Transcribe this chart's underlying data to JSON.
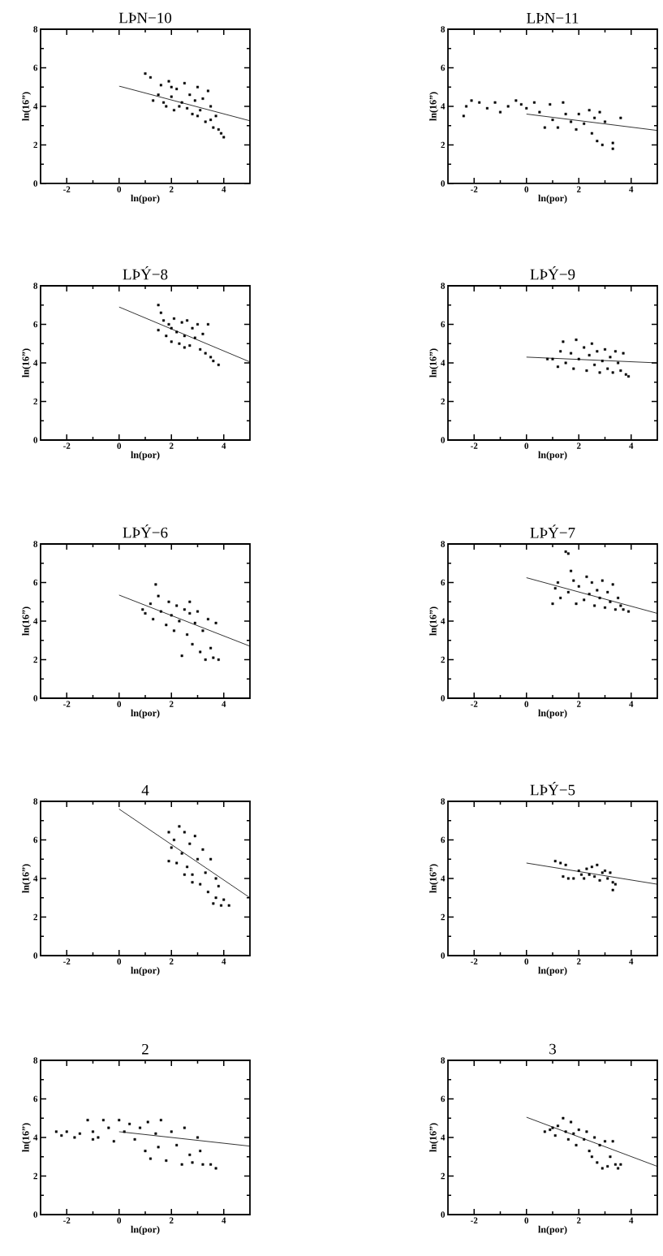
{
  "chart_data": [
    {
      "type": "scatter",
      "title": "LÞN−10",
      "xlabel": "ln(por)",
      "ylabel": "ln(16”)",
      "xlim": [
        -3,
        5
      ],
      "ylim": [
        0,
        8
      ],
      "xticks": [
        -2,
        0,
        2,
        4
      ],
      "yticks": [
        0,
        2,
        4,
        6,
        8
      ],
      "series": [
        {
          "marker": "square",
          "color": "#000000",
          "x": [
            1.0,
            1.2,
            1.3,
            1.5,
            1.6,
            1.8,
            1.9,
            2.0,
            2.1,
            2.2,
            2.4,
            2.5,
            2.6,
            2.7,
            2.8,
            2.9,
            3.0,
            3.1,
            3.2,
            3.3,
            3.4,
            3.5,
            3.5,
            3.6,
            3.7,
            3.8,
            3.9,
            4.0,
            1.7,
            2.3,
            3.0,
            2.0
          ],
          "values": [
            5.7,
            5.5,
            4.3,
            4.6,
            5.1,
            4.0,
            5.3,
            4.5,
            3.8,
            4.9,
            4.2,
            5.2,
            3.9,
            4.6,
            3.6,
            4.3,
            5.0,
            3.8,
            4.4,
            3.2,
            4.8,
            4.0,
            3.3,
            2.9,
            3.5,
            2.8,
            2.6,
            2.4,
            4.2,
            4.0,
            3.5,
            5.0
          ]
        },
        {
          "type": "line",
          "marker": "none",
          "color": "#000000",
          "x": [
            0,
            5
          ],
          "values": [
            5.05,
            3.25
          ]
        }
      ]
    },
    {
      "type": "scatter",
      "title": "LÞN−11",
      "xlabel": "ln(por)",
      "ylabel": "ln(16”)",
      "xlim": [
        -3,
        5
      ],
      "ylim": [
        0,
        8
      ],
      "xticks": [
        -2,
        0,
        2,
        4
      ],
      "yticks": [
        0,
        2,
        4,
        6,
        8
      ],
      "series": [
        {
          "marker": "square",
          "color": "#000000",
          "x": [
            -2.4,
            -2.3,
            -2.1,
            -1.8,
            -1.5,
            -1.2,
            -1.0,
            -0.7,
            -0.4,
            -0.2,
            0,
            0.3,
            0.5,
            0.7,
            0.9,
            1.0,
            1.2,
            1.4,
            1.5,
            1.7,
            1.9,
            2.0,
            2.2,
            2.4,
            2.5,
            2.6,
            2.7,
            2.8,
            2.9,
            3.0,
            3.3,
            3.6,
            3.3
          ],
          "values": [
            3.5,
            4.0,
            4.3,
            4.2,
            3.9,
            4.2,
            3.7,
            4.0,
            4.3,
            4.1,
            3.9,
            4.2,
            3.7,
            2.9,
            4.1,
            3.3,
            2.9,
            4.2,
            3.6,
            3.2,
            2.8,
            3.6,
            3.1,
            3.8,
            2.6,
            3.4,
            2.2,
            3.7,
            2.0,
            3.2,
            1.8,
            3.4,
            2.1
          ]
        },
        {
          "type": "line",
          "marker": "none",
          "color": "#000000",
          "x": [
            0,
            5
          ],
          "values": [
            3.6,
            2.75
          ]
        }
      ]
    },
    {
      "type": "scatter",
      "title": "LÞÝ−8",
      "xlabel": "ln(por)",
      "ylabel": "ln(16”)",
      "xlim": [
        -3,
        5
      ],
      "ylim": [
        0,
        8
      ],
      "xticks": [
        -2,
        0,
        2,
        4
      ],
      "yticks": [
        0,
        2,
        4,
        6,
        8
      ],
      "series": [
        {
          "marker": "square",
          "color": "#000000",
          "x": [
            1.5,
            1.6,
            1.5,
            1.7,
            1.8,
            1.9,
            2.0,
            2.1,
            2.2,
            2.3,
            2.4,
            2.5,
            2.6,
            2.7,
            2.8,
            2.9,
            3.0,
            3.1,
            3.2,
            3.3,
            3.4,
            3.5,
            3.6,
            3.8,
            2.0,
            2.5
          ],
          "values": [
            7.0,
            6.6,
            5.7,
            6.2,
            5.4,
            6.0,
            5.1,
            6.3,
            5.6,
            5.0,
            6.1,
            5.4,
            6.2,
            4.9,
            5.8,
            5.3,
            6.0,
            4.7,
            5.5,
            4.5,
            6.0,
            4.3,
            4.1,
            3.9,
            5.8,
            4.8
          ]
        },
        {
          "type": "line",
          "marker": "none",
          "color": "#000000",
          "x": [
            0,
            5
          ],
          "values": [
            6.9,
            4.05
          ]
        }
      ]
    },
    {
      "type": "scatter",
      "title": "LÞÝ−9",
      "xlabel": "ln(por)",
      "ylabel": "ln(16”)",
      "xlim": [
        -3,
        5
      ],
      "ylim": [
        0,
        8
      ],
      "xticks": [
        -2,
        0,
        2,
        4
      ],
      "yticks": [
        0,
        2,
        4,
        6,
        8
      ],
      "series": [
        {
          "marker": "square",
          "color": "#000000",
          "x": [
            1.0,
            1.2,
            1.3,
            1.4,
            1.5,
            1.7,
            1.8,
            1.9,
            2.0,
            2.2,
            2.3,
            2.4,
            2.5,
            2.6,
            2.7,
            2.8,
            2.9,
            3.0,
            3.1,
            3.2,
            3.3,
            3.4,
            3.5,
            3.6,
            3.7,
            3.8,
            3.9,
            0.8
          ],
          "values": [
            4.2,
            3.8,
            4.6,
            5.1,
            4.0,
            4.5,
            3.7,
            5.2,
            4.2,
            4.8,
            3.6,
            4.4,
            5.0,
            3.9,
            4.6,
            3.5,
            4.1,
            4.7,
            3.7,
            4.3,
            3.5,
            4.6,
            4.0,
            3.6,
            4.5,
            3.4,
            3.3,
            4.2
          ]
        },
        {
          "type": "line",
          "marker": "none",
          "color": "#000000",
          "x": [
            0,
            5
          ],
          "values": [
            4.3,
            4.0
          ]
        }
      ]
    },
    {
      "type": "scatter",
      "title": "LÞÝ−6",
      "xlabel": "ln(por)",
      "ylabel": "ln(16”)",
      "xlim": [
        -3,
        5
      ],
      "ylim": [
        0,
        8
      ],
      "xticks": [
        -2,
        0,
        2,
        4
      ],
      "yticks": [
        0,
        2,
        4,
        6,
        8
      ],
      "series": [
        {
          "marker": "square",
          "color": "#000000",
          "x": [
            0.9,
            1.0,
            1.2,
            1.3,
            1.4,
            1.5,
            1.6,
            1.8,
            1.9,
            2.0,
            2.1,
            2.2,
            2.3,
            2.4,
            2.5,
            2.6,
            2.7,
            2.8,
            2.9,
            3.0,
            3.1,
            3.2,
            3.3,
            3.4,
            3.5,
            3.6,
            3.7,
            3.8,
            2.7
          ],
          "values": [
            4.6,
            4.4,
            4.9,
            4.1,
            5.9,
            5.3,
            4.5,
            3.8,
            5.0,
            4.3,
            3.5,
            4.8,
            4.0,
            2.2,
            4.6,
            3.3,
            4.4,
            2.8,
            3.9,
            4.5,
            2.4,
            3.5,
            2.0,
            4.1,
            2.6,
            2.1,
            3.9,
            2.0,
            5.0
          ]
        },
        {
          "type": "line",
          "marker": "none",
          "color": "#000000",
          "x": [
            0,
            5
          ],
          "values": [
            5.35,
            2.7
          ]
        }
      ]
    },
    {
      "type": "scatter",
      "title": "LÞÝ−7",
      "xlabel": "ln(por)",
      "ylabel": "ln(16”)",
      "xlim": [
        -3,
        5
      ],
      "ylim": [
        0,
        8
      ],
      "xticks": [
        -2,
        0,
        2,
        4
      ],
      "yticks": [
        0,
        2,
        4,
        6,
        8
      ],
      "series": [
        {
          "marker": "square",
          "color": "#000000",
          "x": [
            1.0,
            1.1,
            1.3,
            1.5,
            1.6,
            1.7,
            1.8,
            1.6,
            1.9,
            2.0,
            2.2,
            2.3,
            2.4,
            2.5,
            2.6,
            2.7,
            2.8,
            2.9,
            3.0,
            3.1,
            3.2,
            3.3,
            3.4,
            3.5,
            3.6,
            3.7,
            3.9,
            1.2
          ],
          "values": [
            4.9,
            5.7,
            5.2,
            7.6,
            7.5,
            6.6,
            6.1,
            5.5,
            4.9,
            5.8,
            5.1,
            6.3,
            5.4,
            6.0,
            4.8,
            5.6,
            5.2,
            6.1,
            4.7,
            5.5,
            5.0,
            5.9,
            4.6,
            5.2,
            4.8,
            4.6,
            4.5,
            6.0
          ]
        },
        {
          "type": "line",
          "marker": "none",
          "color": "#000000",
          "x": [
            0,
            5
          ],
          "values": [
            6.25,
            4.4
          ]
        }
      ]
    },
    {
      "type": "scatter",
      "title": "4",
      "xlabel": "ln(por)",
      "ylabel": "ln(16”)",
      "xlim": [
        -3,
        5
      ],
      "ylim": [
        0,
        8
      ],
      "xticks": [
        -2,
        0,
        2,
        4
      ],
      "yticks": [
        0,
        2,
        4,
        6,
        8
      ],
      "series": [
        {
          "marker": "square",
          "color": "#000000",
          "x": [
            1.9,
            1.9,
            2.0,
            2.1,
            2.2,
            2.3,
            2.4,
            2.5,
            2.6,
            2.7,
            2.8,
            2.9,
            3.0,
            3.1,
            3.2,
            3.3,
            3.4,
            3.5,
            3.6,
            3.7,
            3.7,
            3.8,
            3.9,
            4.0,
            4.2,
            2.8,
            2.5
          ],
          "values": [
            6.4,
            4.9,
            5.6,
            6.0,
            4.8,
            6.7,
            5.3,
            6.4,
            4.6,
            5.8,
            4.2,
            6.2,
            5.0,
            3.7,
            5.5,
            4.3,
            3.3,
            5.0,
            2.7,
            4.0,
            3.0,
            3.6,
            2.6,
            2.9,
            2.6,
            3.8,
            4.2
          ]
        },
        {
          "type": "line",
          "marker": "none",
          "color": "#000000",
          "x": [
            0,
            5
          ],
          "values": [
            7.6,
            3.0
          ]
        }
      ]
    },
    {
      "type": "scatter",
      "title": "LÞÝ−5",
      "xlabel": "ln(por)",
      "ylabel": "ln(16”)",
      "xlim": [
        -3,
        5
      ],
      "ylim": [
        0,
        8
      ],
      "xticks": [
        -2,
        0,
        2,
        4
      ],
      "yticks": [
        0,
        2,
        4,
        6,
        8
      ],
      "series": [
        {
          "marker": "square",
          "color": "#000000",
          "x": [
            1.1,
            1.3,
            1.4,
            1.6,
            1.8,
            2.0,
            2.1,
            2.3,
            2.4,
            2.5,
            2.6,
            2.7,
            2.8,
            2.9,
            3.0,
            3.1,
            3.2,
            3.3,
            3.3,
            3.4,
            1.5,
            2.2
          ],
          "values": [
            4.9,
            4.8,
            4.1,
            4.0,
            4.0,
            4.4,
            4.2,
            4.5,
            4.2,
            4.6,
            4.1,
            4.7,
            3.9,
            4.3,
            4.4,
            4.0,
            4.3,
            3.8,
            3.4,
            3.7,
            4.7,
            4.0
          ]
        },
        {
          "type": "line",
          "marker": "none",
          "color": "#000000",
          "x": [
            0,
            5
          ],
          "values": [
            4.8,
            3.7
          ]
        }
      ]
    },
    {
      "type": "scatter",
      "title": "2",
      "xlabel": "ln(por)",
      "ylabel": "ln(16”)",
      "xlim": [
        -3,
        5
      ],
      "ylim": [
        0,
        8
      ],
      "xticks": [
        -2,
        0,
        2,
        4
      ],
      "yticks": [
        0,
        2,
        4,
        6,
        8
      ],
      "series": [
        {
          "marker": "square",
          "color": "#000000",
          "x": [
            -2.4,
            -2.2,
            -2.0,
            -1.7,
            -1.5,
            -1.2,
            -1.0,
            -0.8,
            -0.6,
            -0.4,
            -0.2,
            0,
            0.2,
            0.4,
            0.6,
            0.8,
            1.0,
            1.1,
            1.2,
            1.4,
            1.5,
            1.6,
            1.8,
            2.0,
            2.2,
            2.4,
            2.5,
            2.7,
            2.8,
            3.0,
            3.1,
            3.2,
            3.5,
            3.7,
            -1.0
          ],
          "values": [
            4.3,
            4.1,
            4.3,
            4.0,
            4.2,
            4.9,
            4.3,
            4.0,
            4.9,
            4.5,
            3.8,
            4.9,
            4.3,
            4.7,
            3.9,
            4.5,
            3.3,
            4.8,
            2.9,
            4.2,
            3.5,
            4.9,
            2.8,
            4.3,
            3.6,
            2.6,
            4.5,
            3.1,
            2.7,
            4.0,
            3.3,
            2.6,
            2.6,
            2.4,
            3.9
          ]
        },
        {
          "type": "line",
          "marker": "none",
          "color": "#000000",
          "x": [
            0,
            5
          ],
          "values": [
            4.3,
            3.55
          ]
        }
      ]
    },
    {
      "type": "scatter",
      "title": "3",
      "xlabel": "ln(por)",
      "ylabel": "ln(16”)",
      "xlim": [
        -3,
        5
      ],
      "ylim": [
        0,
        8
      ],
      "xticks": [
        -2,
        0,
        2,
        4
      ],
      "yticks": [
        0,
        2,
        4,
        6,
        8
      ],
      "series": [
        {
          "marker": "square",
          "color": "#000000",
          "x": [
            0.7,
            0.9,
            1.1,
            1.2,
            1.4,
            1.5,
            1.6,
            1.7,
            1.8,
            1.9,
            2.0,
            2.2,
            2.3,
            2.4,
            2.5,
            2.6,
            2.7,
            2.8,
            2.9,
            3.0,
            3.1,
            3.2,
            3.3,
            3.4,
            3.5,
            3.6,
            1.0
          ],
          "values": [
            4.3,
            4.4,
            4.1,
            4.6,
            5.0,
            4.3,
            3.9,
            4.8,
            4.2,
            3.6,
            4.4,
            3.9,
            4.3,
            3.3,
            3.0,
            4.0,
            2.7,
            3.6,
            2.4,
            3.8,
            2.5,
            3.0,
            3.8,
            2.6,
            2.4,
            2.6,
            4.5
          ]
        },
        {
          "type": "line",
          "marker": "none",
          "color": "#000000",
          "x": [
            0,
            5
          ],
          "values": [
            5.05,
            2.5
          ]
        }
      ]
    }
  ]
}
